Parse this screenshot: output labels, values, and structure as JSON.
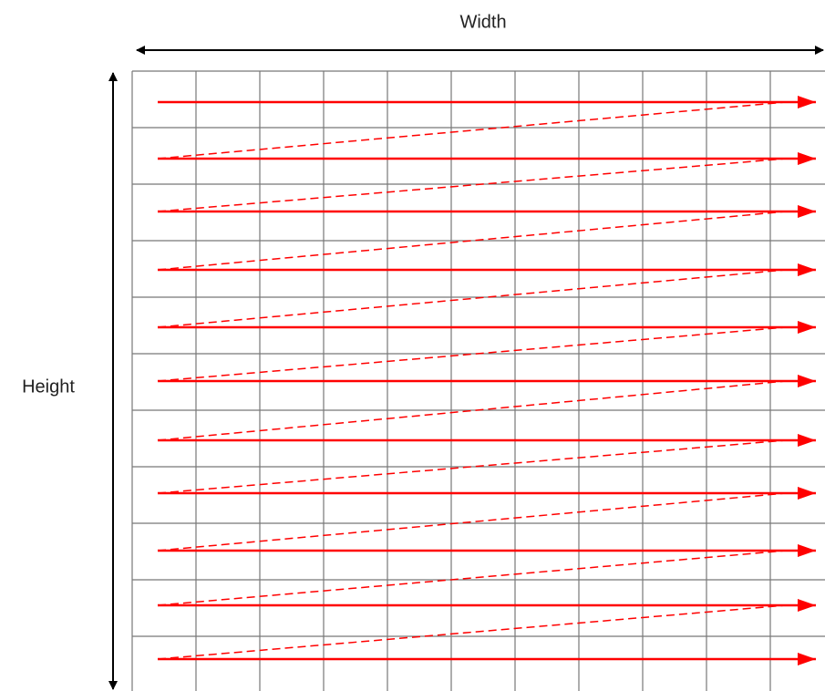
{
  "labels": {
    "width": "Width",
    "height": "Height"
  }
}
